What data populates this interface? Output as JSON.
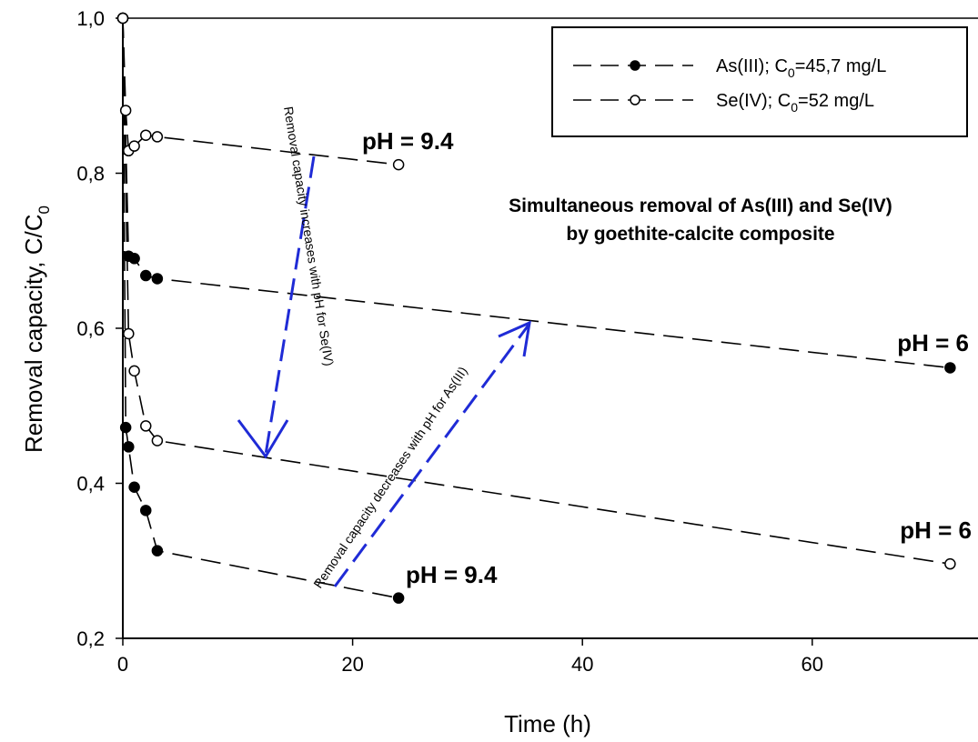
{
  "chart_data": {
    "type": "line",
    "title_lines": [
      "Simultaneous removal of As(III) and Se(IV)",
      "by goethite-calcite composite"
    ],
    "xlabel": "Time (h)",
    "ylabel": "Removal capacity, C/C",
    "ylabel_sub": "0",
    "xlim": [
      0,
      72
    ],
    "ylim": [
      0.2,
      1.0
    ],
    "xticks": [
      0,
      20,
      40,
      60
    ],
    "xtick_labels": [
      "0",
      "20",
      "40",
      "60"
    ],
    "yticks": [
      0.2,
      0.4,
      0.6,
      0.8,
      1.0
    ],
    "ytick_labels": [
      "0,2",
      "0,4",
      "0,6",
      "0,8",
      "1,0"
    ],
    "grid": false,
    "legend_position": "top-right",
    "legend": [
      {
        "marker": "filled",
        "prefix": "As(III); C",
        "sub": "0",
        "suffix": "=45,7 mg/L"
      },
      {
        "marker": "open",
        "prefix": "Se(IV); C",
        "sub": "0",
        "suffix": "=52 mg/L"
      }
    ],
    "series": [
      {
        "marker": "filled",
        "ph_label": "pH = 6",
        "x": [
          0,
          0.5,
          1,
          2,
          3,
          72
        ],
        "y": [
          1.0,
          0.693,
          0.69,
          0.668,
          0.664,
          0.549
        ]
      },
      {
        "marker": "filled",
        "ph_label": "pH = 9.4",
        "x": [
          0,
          0.25,
          0.5,
          1,
          2,
          3,
          24
        ],
        "y": [
          1.0,
          0.472,
          0.447,
          0.395,
          0.365,
          0.313,
          0.252
        ]
      },
      {
        "marker": "open",
        "ph_label": "pH = 6",
        "x": [
          0,
          0.5,
          1,
          2,
          3,
          72
        ],
        "y": [
          1.0,
          0.593,
          0.545,
          0.474,
          0.455,
          0.296
        ]
      },
      {
        "marker": "open",
        "ph_label": "pH = 9.4",
        "x": [
          0,
          0.25,
          0.5,
          1,
          2,
          3,
          24
        ],
        "y": [
          1.0,
          0.881,
          0.829,
          0.835,
          0.849,
          0.847,
          0.811
        ]
      }
    ],
    "annotations": [
      {
        "text": "Removal capacity increases with pH for Se(IV)",
        "color": "#1f2bd6"
      },
      {
        "text": "Removal capacity decreases with pH for As(III)",
        "color": "#1f2bd6"
      }
    ]
  }
}
